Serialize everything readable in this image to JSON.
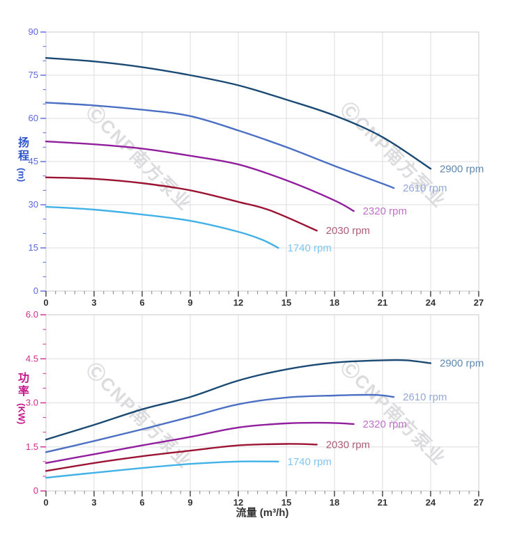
{
  "watermark": {
    "text": "ⒸCNP南方泵业",
    "color": "#dcdcdf"
  },
  "chart_data": [
    {
      "type": "line",
      "name": "head-vs-flow-chart",
      "title": "",
      "xlabel": "",
      "ylabel_cn": "扬程",
      "ylabel_unit": "(m)",
      "xlim": [
        0,
        27
      ],
      "ylim": [
        0,
        90
      ],
      "grid": true,
      "legend_position": "end-of-line",
      "x_major_ticks": [
        0,
        3,
        6,
        9,
        12,
        15,
        18,
        21,
        24,
        27
      ],
      "x_tick_labels": [
        "0",
        "3",
        "6",
        "9",
        "12",
        "15",
        "18",
        "21",
        "24",
        "27"
      ],
      "x_minor_step": 0.6,
      "y_major_ticks": [
        0,
        15,
        30,
        45,
        60,
        75,
        90
      ],
      "y_tick_labels": [
        "0",
        "15",
        "30",
        "45",
        "60",
        "75",
        "90"
      ],
      "y_minor_step": 5,
      "axis_style": {
        "y_label_color": "#5a68de",
        "y_title_color": "#2f55cc",
        "x_label_color": "#333333"
      },
      "series": [
        {
          "name": "2900 rpm",
          "color": "#1a4a73",
          "label_color": "#6089ae",
          "x": [
            0,
            3,
            6,
            9,
            12,
            15,
            18,
            21,
            24
          ],
          "y": [
            81,
            79.8,
            77.8,
            75,
            71.5,
            66.5,
            61,
            53.5,
            42.5
          ]
        },
        {
          "name": "2610 rpm",
          "color": "#4b6fc3",
          "label_color": "#92a7da",
          "x": [
            0,
            3,
            6,
            9,
            12,
            15,
            18,
            21,
            21.7
          ],
          "y": [
            65.5,
            64.5,
            63,
            60.8,
            55.8,
            50,
            43.5,
            37.3,
            35.8
          ]
        },
        {
          "name": "2320 rpm",
          "color": "#911e9c",
          "label_color": "#c06fc9",
          "x": [
            0,
            3,
            6,
            9,
            12,
            15,
            18,
            19.2
          ],
          "y": [
            52,
            51,
            49.5,
            47,
            44,
            38.5,
            31.5,
            27.8
          ]
        },
        {
          "name": "2030 rpm",
          "color": "#9b1434",
          "label_color": "#ad5e77",
          "x": [
            0,
            3,
            6,
            9,
            12,
            14,
            16.9
          ],
          "y": [
            39.5,
            39,
            37.5,
            35,
            31,
            28,
            21
          ]
        },
        {
          "name": "1740 rpm",
          "color": "#41b1e6",
          "label_color": "#7fc5ee",
          "x": [
            0,
            3,
            6,
            9,
            12,
            13.5,
            14.5
          ],
          "y": [
            29.3,
            28.3,
            26.6,
            24.4,
            20.6,
            17.8,
            15
          ]
        }
      ]
    },
    {
      "type": "line",
      "name": "power-vs-flow-chart",
      "title": "",
      "xlabel": "流量 (m³/h)",
      "ylabel_cn": "功率",
      "ylabel_unit": "(KW)",
      "xlim": [
        0,
        27
      ],
      "ylim": [
        0,
        6
      ],
      "grid": true,
      "legend_position": "end-of-line",
      "x_major_ticks": [
        0,
        3,
        6,
        9,
        12,
        15,
        18,
        21,
        24,
        27
      ],
      "x_tick_labels": [
        "0",
        "3",
        "6",
        "9",
        "12",
        "15",
        "18",
        "21",
        "24",
        "27"
      ],
      "x_minor_step": 0.6,
      "y_major_ticks": [
        0,
        1.5,
        3,
        4.5,
        6
      ],
      "y_tick_labels": [
        "0",
        "1.5",
        "3.0",
        "4.5",
        "6.0"
      ],
      "y_minor_step": 0.5,
      "axis_style": {
        "y_label_color": "#d12b8e",
        "y_title_color": "#c4188a",
        "x_label_color": "#333333"
      },
      "series": [
        {
          "name": "2900 rpm",
          "color": "#1a4a73",
          "label_color": "#6089ae",
          "x": [
            0,
            3,
            6,
            9,
            12,
            15,
            18,
            21,
            22.5,
            24
          ],
          "y": [
            1.75,
            2.25,
            2.78,
            3.2,
            3.76,
            4.14,
            4.37,
            4.45,
            4.45,
            4.35
          ]
        },
        {
          "name": "2610 rpm",
          "color": "#4b6fc3",
          "label_color": "#92a7da",
          "x": [
            0,
            3,
            6,
            9,
            12,
            15,
            18,
            20.5,
            21.7
          ],
          "y": [
            1.32,
            1.7,
            2.1,
            2.52,
            2.95,
            3.18,
            3.25,
            3.27,
            3.2
          ]
        },
        {
          "name": "2320 rpm",
          "color": "#911e9c",
          "label_color": "#c06fc9",
          "x": [
            0,
            3,
            6,
            9,
            12,
            15,
            17.5,
            19.2
          ],
          "y": [
            0.95,
            1.25,
            1.55,
            1.84,
            2.16,
            2.3,
            2.32,
            2.28
          ]
        },
        {
          "name": "2030 rpm",
          "color": "#9b1434",
          "label_color": "#ad5e77",
          "x": [
            0,
            3,
            6,
            9,
            12,
            15,
            16.9
          ],
          "y": [
            0.68,
            0.95,
            1.18,
            1.37,
            1.55,
            1.6,
            1.58
          ]
        },
        {
          "name": "1740 rpm",
          "color": "#41b1e6",
          "label_color": "#7fc5ee",
          "x": [
            0,
            3,
            6,
            9,
            12,
            14.5
          ],
          "y": [
            0.45,
            0.62,
            0.78,
            0.92,
            1.0,
            1.0
          ]
        }
      ]
    }
  ]
}
